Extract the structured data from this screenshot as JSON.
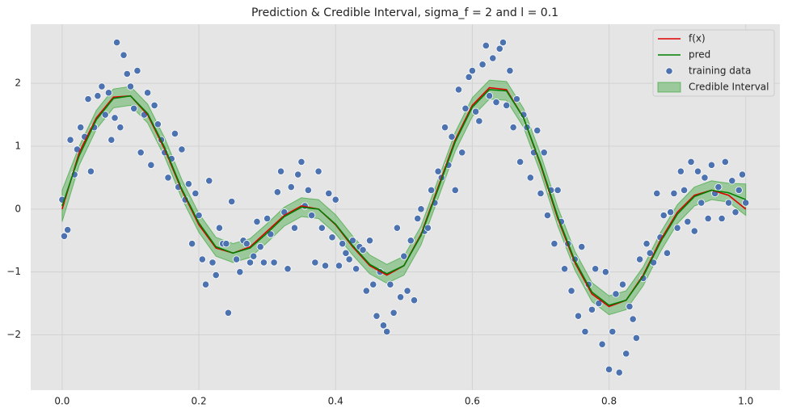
{
  "chart_data": {
    "type": "line",
    "title": "Prediction & Credible Interval, sigma_f = 2 and l = 0.1",
    "x": [
      0,
      0.025,
      0.05,
      0.075,
      0.1,
      0.125,
      0.15,
      0.175,
      0.2,
      0.225,
      0.25,
      0.275,
      0.3,
      0.325,
      0.35,
      0.375,
      0.4,
      0.425,
      0.45,
      0.475,
      0.5,
      0.525,
      0.55,
      0.575,
      0.6,
      0.625,
      0.65,
      0.675,
      0.7,
      0.725,
      0.75,
      0.775,
      0.8,
      0.825,
      0.85,
      0.875,
      0.9,
      0.925,
      0.95,
      0.975,
      1.0
    ],
    "series": [
      {
        "name": "f(x)",
        "color": "#e00000",
        "values": [
          0,
          0.9,
          1.45,
          1.78,
          1.8,
          1.5,
          0.95,
          0.3,
          -0.25,
          -0.62,
          -0.7,
          -0.6,
          -0.35,
          -0.1,
          0.05,
          0.0,
          -0.25,
          -0.6,
          -0.9,
          -1.05,
          -0.9,
          -0.4,
          0.35,
          1.1,
          1.65,
          1.93,
          1.9,
          1.45,
          0.7,
          -0.15,
          -0.85,
          -1.35,
          -1.55,
          -1.45,
          -1.05,
          -0.5,
          -0.05,
          0.22,
          0.3,
          0.22,
          0.0
        ]
      },
      {
        "name": "pred",
        "color": "#008000",
        "values": [
          0.05,
          0.85,
          1.42,
          1.76,
          1.8,
          1.52,
          0.98,
          0.32,
          -0.22,
          -0.6,
          -0.7,
          -0.62,
          -0.38,
          -0.12,
          0.03,
          0.0,
          -0.24,
          -0.58,
          -0.88,
          -1.03,
          -0.9,
          -0.42,
          0.32,
          1.07,
          1.62,
          1.9,
          1.88,
          1.45,
          0.72,
          -0.12,
          -0.82,
          -1.32,
          -1.53,
          -1.45,
          -1.07,
          -0.53,
          -0.08,
          0.2,
          0.3,
          0.26,
          0.15
        ]
      }
    ],
    "scatter": {
      "name": "training data",
      "color": "#4c72b0",
      "x": [
        0.0,
        0.003,
        0.008,
        0.012,
        0.018,
        0.022,
        0.027,
        0.033,
        0.038,
        0.042,
        0.047,
        0.052,
        0.058,
        0.063,
        0.068,
        0.072,
        0.077,
        0.08,
        0.085,
        0.09,
        0.095,
        0.1,
        0.105,
        0.11,
        0.115,
        0.12,
        0.125,
        0.13,
        0.135,
        0.14,
        0.145,
        0.15,
        0.155,
        0.16,
        0.165,
        0.17,
        0.175,
        0.18,
        0.185,
        0.19,
        0.195,
        0.2,
        0.205,
        0.21,
        0.215,
        0.22,
        0.225,
        0.23,
        0.235,
        0.24,
        0.243,
        0.248,
        0.255,
        0.26,
        0.265,
        0.27,
        0.275,
        0.28,
        0.285,
        0.29,
        0.295,
        0.3,
        0.305,
        0.31,
        0.315,
        0.32,
        0.325,
        0.33,
        0.335,
        0.34,
        0.345,
        0.35,
        0.355,
        0.36,
        0.365,
        0.37,
        0.375,
        0.38,
        0.385,
        0.39,
        0.395,
        0.4,
        0.405,
        0.41,
        0.415,
        0.42,
        0.425,
        0.43,
        0.435,
        0.44,
        0.445,
        0.45,
        0.455,
        0.46,
        0.465,
        0.47,
        0.475,
        0.48,
        0.485,
        0.49,
        0.495,
        0.5,
        0.505,
        0.51,
        0.515,
        0.52,
        0.525,
        0.53,
        0.535,
        0.54,
        0.545,
        0.55,
        0.555,
        0.56,
        0.565,
        0.57,
        0.575,
        0.58,
        0.585,
        0.59,
        0.595,
        0.6,
        0.605,
        0.61,
        0.615,
        0.62,
        0.625,
        0.63,
        0.635,
        0.64,
        0.645,
        0.65,
        0.655,
        0.66,
        0.665,
        0.67,
        0.675,
        0.68,
        0.685,
        0.69,
        0.695,
        0.7,
        0.705,
        0.71,
        0.715,
        0.72,
        0.725,
        0.73,
        0.735,
        0.74,
        0.745,
        0.75,
        0.755,
        0.76,
        0.765,
        0.77,
        0.775,
        0.78,
        0.785,
        0.79,
        0.795,
        0.8,
        0.805,
        0.81,
        0.815,
        0.82,
        0.825,
        0.83,
        0.835,
        0.84,
        0.845,
        0.85,
        0.855,
        0.86,
        0.865,
        0.87,
        0.875,
        0.88,
        0.885,
        0.89,
        0.895,
        0.9,
        0.905,
        0.91,
        0.915,
        0.92,
        0.925,
        0.93,
        0.935,
        0.94,
        0.945,
        0.95,
        0.955,
        0.96,
        0.965,
        0.97,
        0.975,
        0.98,
        0.985,
        0.99,
        0.995,
        1.0
      ],
      "y": [
        0.15,
        -0.43,
        -0.33,
        1.1,
        0.55,
        0.95,
        1.3,
        1.15,
        1.75,
        0.6,
        1.3,
        1.8,
        1.95,
        1.5,
        1.85,
        1.1,
        1.45,
        2.65,
        1.3,
        2.45,
        2.15,
        1.95,
        1.6,
        2.2,
        0.9,
        1.5,
        1.85,
        0.7,
        1.65,
        1.35,
        1.1,
        0.9,
        0.5,
        0.8,
        1.2,
        0.35,
        0.95,
        0.15,
        0.4,
        -0.55,
        0.25,
        -0.1,
        -0.8,
        -1.2,
        0.45,
        -0.85,
        -1.05,
        -0.3,
        -0.55,
        -0.55,
        -1.65,
        0.12,
        -0.8,
        -1.0,
        -0.5,
        -0.55,
        -0.85,
        -0.75,
        -0.2,
        -0.6,
        -0.85,
        -0.15,
        -0.4,
        -0.85,
        0.27,
        0.6,
        -0.05,
        -0.95,
        0.35,
        -0.3,
        0.55,
        0.75,
        0.05,
        0.3,
        -0.1,
        -0.85,
        0.6,
        -0.3,
        -0.9,
        0.25,
        -0.45,
        0.15,
        -0.9,
        -0.55,
        -0.7,
        -0.8,
        -0.5,
        -0.95,
        -0.6,
        -0.65,
        -1.3,
        -0.5,
        -1.2,
        -1.7,
        -1.0,
        -1.85,
        -1.95,
        -1.2,
        -1.65,
        -0.3,
        -1.4,
        -0.75,
        -1.3,
        -0.5,
        -1.45,
        -0.15,
        0.0,
        -0.35,
        -0.3,
        0.3,
        0.1,
        0.6,
        0.5,
        1.3,
        0.7,
        1.15,
        0.3,
        1.9,
        0.9,
        1.6,
        2.1,
        2.2,
        1.55,
        1.4,
        2.3,
        2.6,
        1.8,
        2.4,
        1.7,
        2.55,
        2.65,
        1.65,
        2.2,
        1.3,
        1.75,
        0.75,
        1.5,
        1.3,
        0.5,
        0.9,
        1.25,
        0.25,
        0.9,
        -0.1,
        0.3,
        -0.55,
        0.3,
        -0.2,
        -0.95,
        -0.55,
        -1.3,
        -0.8,
        -1.7,
        -0.6,
        -1.95,
        -1.2,
        -1.6,
        -0.95,
        -1.5,
        -2.15,
        -1.0,
        -2.55,
        -1.95,
        -1.35,
        -2.6,
        -1.2,
        -2.3,
        -1.55,
        -1.75,
        -2.05,
        -0.8,
        -1.1,
        -0.55,
        -0.7,
        -0.85,
        0.25,
        -0.45,
        -0.1,
        -0.7,
        -0.05,
        0.25,
        -0.3,
        0.6,
        0.3,
        -0.2,
        0.75,
        -0.35,
        0.6,
        0.1,
        0.5,
        -0.15,
        0.7,
        0.25,
        0.35,
        -0.15,
        0.75,
        0.1,
        0.45,
        -0.05,
        0.3,
        0.55,
        0.1
      ]
    },
    "band": {
      "name": "Credible Interval",
      "color": "#2ca02c",
      "upper": [
        0.3,
        1.0,
        1.57,
        1.91,
        1.95,
        1.67,
        1.13,
        0.47,
        -0.07,
        -0.45,
        -0.55,
        -0.47,
        -0.23,
        0.03,
        0.18,
        0.15,
        -0.09,
        -0.43,
        -0.73,
        -0.88,
        -0.75,
        -0.27,
        0.47,
        1.22,
        1.77,
        2.05,
        2.03,
        1.6,
        0.87,
        0.03,
        -0.67,
        -1.17,
        -1.38,
        -1.3,
        -0.92,
        -0.38,
        0.07,
        0.35,
        0.45,
        0.41,
        0.4
      ],
      "lower": [
        -0.2,
        0.7,
        1.27,
        1.61,
        1.65,
        1.37,
        0.83,
        0.17,
        -0.37,
        -0.75,
        -0.85,
        -0.77,
        -0.53,
        -0.27,
        -0.12,
        -0.15,
        -0.39,
        -0.73,
        -1.03,
        -1.18,
        -1.05,
        -0.57,
        0.17,
        0.92,
        1.47,
        1.75,
        1.73,
        1.3,
        0.57,
        -0.27,
        -0.97,
        -1.47,
        -1.68,
        -1.6,
        -1.22,
        -0.68,
        -0.23,
        0.05,
        0.15,
        0.11,
        -0.1
      ]
    },
    "xlim": [
      -0.046,
      1.05
    ],
    "ylim": [
      -2.88,
      2.94
    ],
    "xticks": [
      {
        "value": 0,
        "label": "0.0"
      },
      0.2,
      0.4,
      0.6,
      0.8,
      {
        "value": 1,
        "label": "1.0"
      }
    ],
    "yticks": [
      {
        "value": -2,
        "label": "−2"
      },
      {
        "value": -1,
        "label": "−1"
      },
      0,
      1,
      2
    ],
    "grid": true,
    "legend": "upper right"
  }
}
